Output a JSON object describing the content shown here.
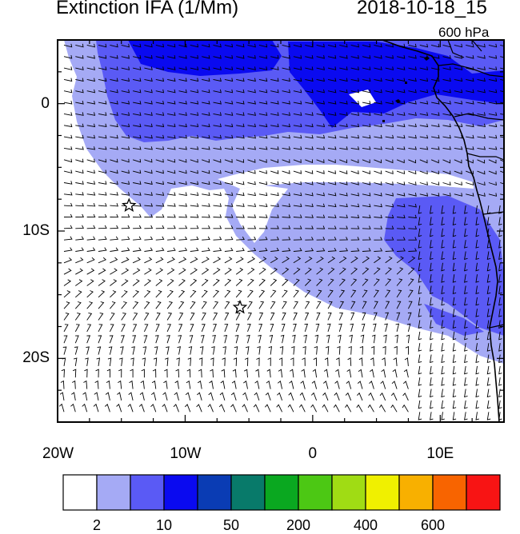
{
  "title_left": "Extinction IFA (1/Mm)",
  "title_right": "2018-10-18_15",
  "level_label": "600 hPa",
  "map": {
    "lon_range": [
      -20,
      15
    ],
    "lat_range": [
      -25,
      5
    ],
    "lon_ticks": [
      {
        "value": -20,
        "label": "20W"
      },
      {
        "value": -10,
        "label": "10W"
      },
      {
        "value": 0,
        "label": "0"
      },
      {
        "value": 10,
        "label": "10E"
      }
    ],
    "lat_ticks": [
      {
        "value": 0,
        "label": "0"
      },
      {
        "value": -10,
        "label": "10S"
      },
      {
        "value": -20,
        "label": "20S"
      }
    ],
    "markers": [
      {
        "name": "star-marker",
        "lon": -14.4,
        "lat": -8.0
      },
      {
        "name": "star-marker",
        "lon": -5.7,
        "lat": -16.0
      }
    ]
  },
  "colorbar": {
    "colors": [
      "#ffffff",
      "#a5aaf5",
      "#5a5af5",
      "#0a0af0",
      "#0a3cb4",
      "#087a6a",
      "#0aa820",
      "#4cc814",
      "#a0dc14",
      "#f0f000",
      "#f8b000",
      "#f86400",
      "#f81414"
    ],
    "labels": [
      {
        "after_box": 1,
        "text": "2"
      },
      {
        "after_box": 3,
        "text": "10"
      },
      {
        "after_box": 5,
        "text": "50"
      },
      {
        "after_box": 7,
        "text": "200"
      },
      {
        "after_box": 9,
        "text": "400"
      },
      {
        "after_box": 11,
        "text": "600"
      }
    ]
  },
  "fill_colors": {
    "light": "#a5aaf5",
    "medium": "#5a5af5",
    "dark": "#0a0af0"
  }
}
